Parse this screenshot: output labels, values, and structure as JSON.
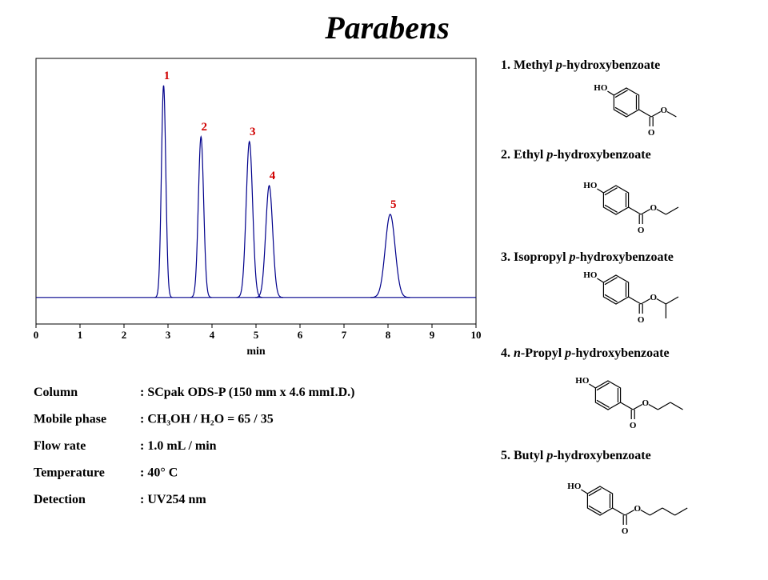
{
  "chart_data": {
    "type": "chromatogram",
    "title": "Parabens",
    "xlabel": "min",
    "xlim": [
      0,
      10
    ],
    "xticks": [
      0,
      1,
      2,
      3,
      4,
      5,
      6,
      7,
      8,
      9,
      10
    ],
    "ylim": [
      0,
      100
    ],
    "baseline": 10,
    "color": "#00008b",
    "label_color": "#d00000",
    "categories": [
      "1",
      "2",
      "3",
      "4",
      "5"
    ],
    "x": [
      2.9,
      3.75,
      4.85,
      5.3,
      8.05
    ],
    "values": [
      89.8,
      70.5,
      68.7,
      52.1,
      41.3
    ]
  },
  "conditions": [
    [
      "Column",
      ": SCpak ODS-P  (150 mm x 4.6 mmI.D.)"
    ],
    [
      "Mobile phase",
      ": CH₃OH / H₂O  = 65 / 35"
    ],
    [
      "Flow rate",
      ": 1.0 mL / min"
    ],
    [
      "Temperature",
      ": 40° C"
    ],
    [
      "Detection",
      ": UV254 nm"
    ]
  ],
  "compounds": [
    [
      "1. Methyl ",
      "p",
      "-hydroxybenzoate"
    ],
    [
      "2. Ethyl ",
      "p",
      "-hydroxybenzoate"
    ],
    [
      "3. Isopropyl ",
      "p",
      "-hydroxybenzoate"
    ],
    [
      "4. ",
      "n",
      "-Propyl ",
      "p",
      "-hydroxybenzoate"
    ],
    [
      "5. Butyl ",
      "p",
      "-hydroxybenzoate"
    ]
  ],
  "structure_labels": {
    "hydroxyl": "HO",
    "oxygen": "O"
  }
}
